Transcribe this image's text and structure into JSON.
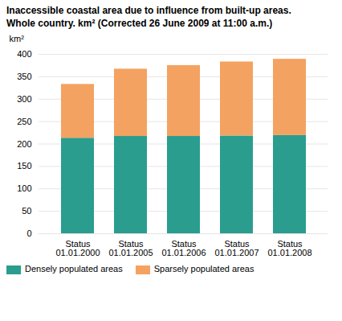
{
  "chart_data": {
    "type": "bar",
    "title": "Inaccessible coastal area due to influence from built-up areas.",
    "subtitle": "Whole country. km² (Corrected 26 June 2009 at 11:00 a.m.)",
    "ylabel": "km²",
    "categories": [
      "Status\n01.01.2000",
      "Status\n01.01.2005",
      "Status\n01.01.2006",
      "Status\n01.01.2007",
      "Status\n01.01.2008"
    ],
    "series": [
      {
        "name": "Densely populated areas",
        "color": "#2a9d8f",
        "values": [
          213,
          217,
          217,
          218,
          219
        ]
      },
      {
        "name": "Sparsely populated areas",
        "color": "#f4a261",
        "values": [
          120,
          150,
          158,
          165,
          170
        ]
      }
    ],
    "stacked": true,
    "ylim": [
      0,
      400
    ],
    "yticks": [
      0,
      50,
      100,
      150,
      200,
      250,
      300,
      350,
      400
    ],
    "grid": true,
    "legend": "bottom"
  }
}
